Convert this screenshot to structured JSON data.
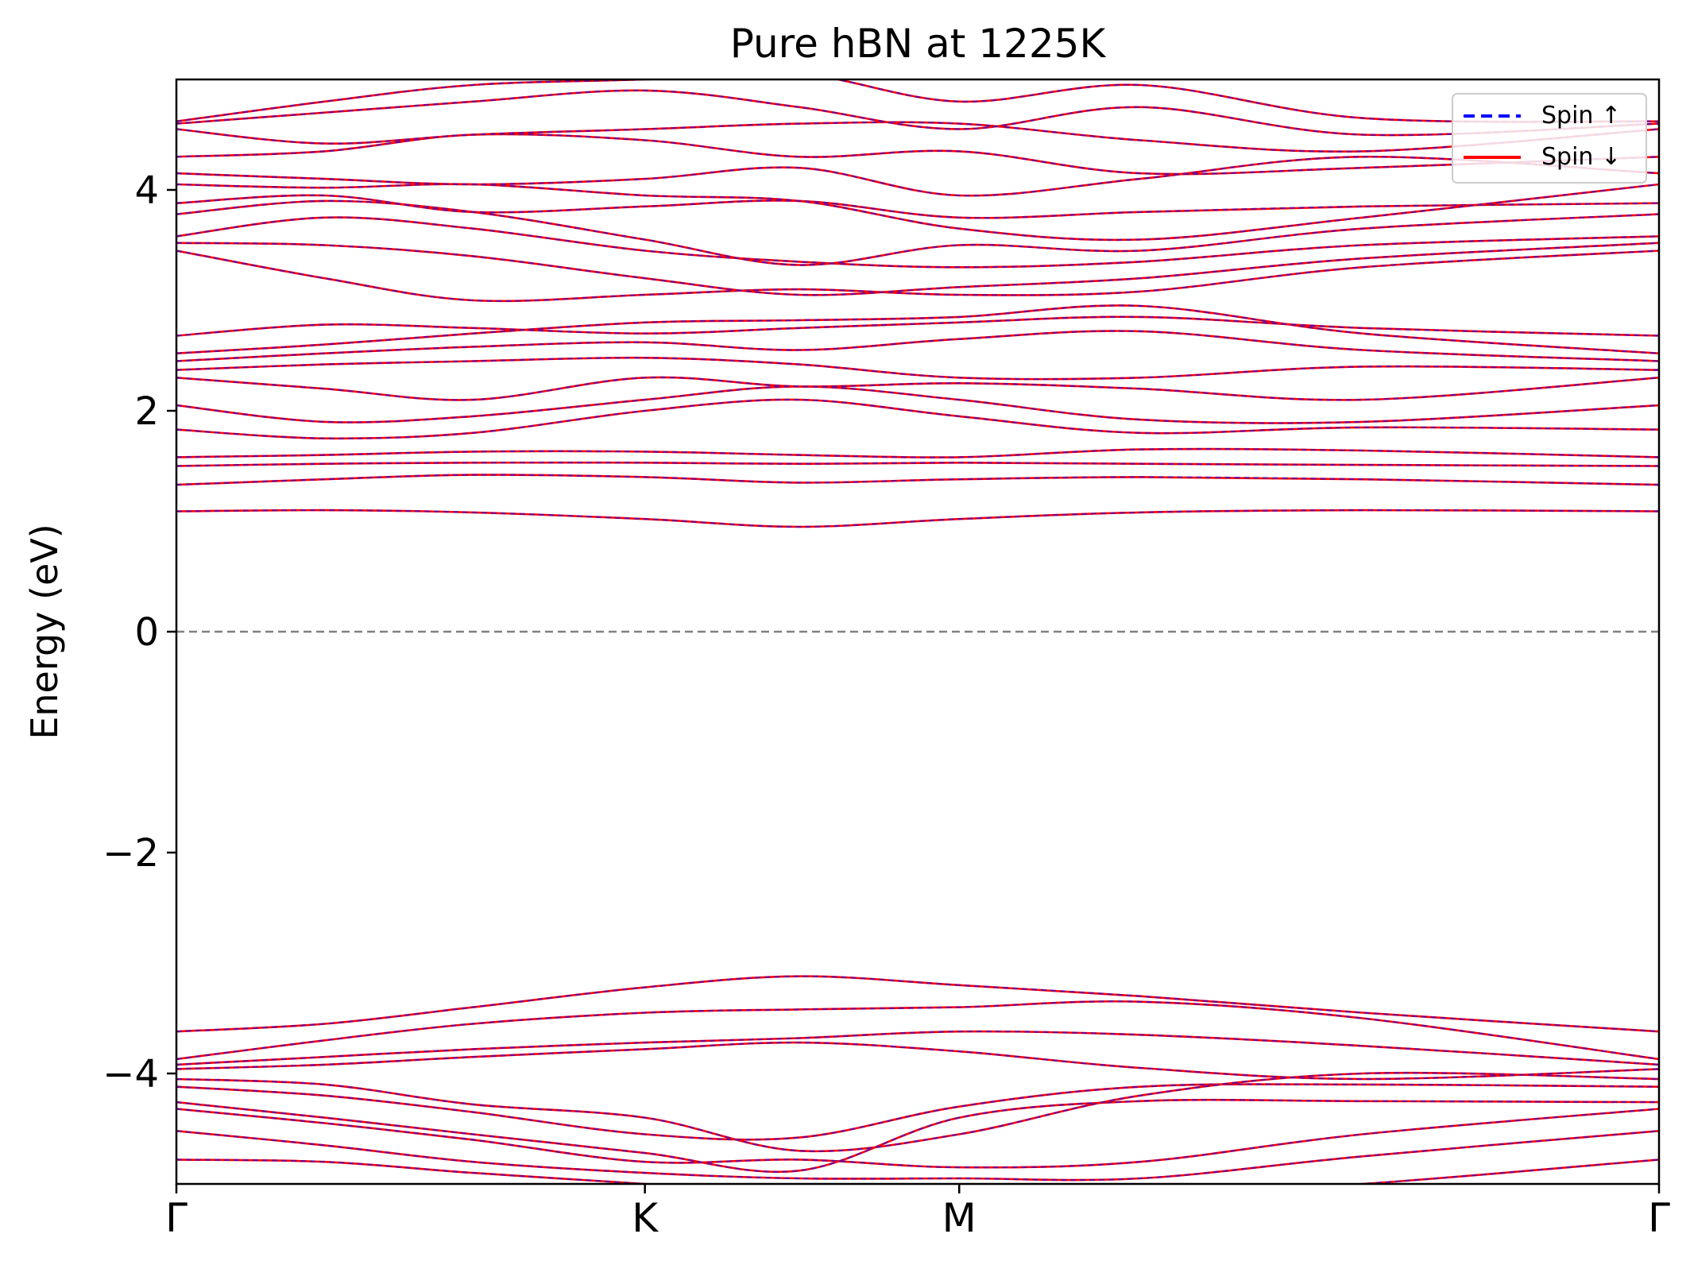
{
  "chart_data": {
    "type": "line",
    "title": "Pure hBN at 1225K",
    "xlabel": "",
    "ylabel": "Energy (eV)",
    "xlim": [
      0,
      1
    ],
    "ylim": [
      -5,
      5
    ],
    "x_ticks": [
      {
        "pos": 0.0,
        "label": "Γ"
      },
      {
        "pos": 0.316,
        "label": "K"
      },
      {
        "pos": 0.528,
        "label": "M"
      },
      {
        "pos": 1.0,
        "label": "Γ"
      }
    ],
    "y_ticks": [
      {
        "value": -4,
        "label": "−4"
      },
      {
        "value": -2,
        "label": "−2"
      },
      {
        "value": 0,
        "label": "0"
      },
      {
        "value": 2,
        "label": "2"
      },
      {
        "value": 4,
        "label": "4"
      }
    ],
    "fermi_level": 0,
    "grid": false,
    "legend_placement": "top-right",
    "colors": {
      "spin_up": "#0000ff",
      "spin_down": "#ff0000",
      "fermi": "#808080"
    },
    "series": [
      {
        "name": "Spin ↑",
        "style": "dashed"
      },
      {
        "name": "Spin ↓",
        "style": "solid"
      }
    ],
    "x": [
      0.0,
      0.1,
      0.2,
      0.316,
      0.42,
      0.528,
      0.65,
      0.8,
      1.0
    ],
    "bands": [
      [
        -4.78,
        -4.8,
        -4.9,
        -5.0,
        -5.1,
        -5.1,
        -5.1,
        -5.0,
        -4.78
      ],
      [
        -4.52,
        -4.65,
        -4.8,
        -4.9,
        -4.95,
        -4.95,
        -4.95,
        -4.75,
        -4.52
      ],
      [
        -4.32,
        -4.45,
        -4.6,
        -4.8,
        -4.78,
        -4.85,
        -4.8,
        -4.55,
        -4.32
      ],
      [
        -4.26,
        -4.4,
        -4.55,
        -4.72,
        -4.88,
        -4.4,
        -4.25,
        -4.25,
        -4.26
      ],
      [
        -4.12,
        -4.2,
        -4.35,
        -4.55,
        -4.58,
        -4.3,
        -4.12,
        -4.1,
        -4.12
      ],
      [
        -4.05,
        -4.1,
        -4.28,
        -4.4,
        -4.7,
        -4.55,
        -4.2,
        -4.0,
        -4.05
      ],
      [
        -3.96,
        -3.92,
        -3.85,
        -3.78,
        -3.72,
        -3.8,
        -3.95,
        -4.05,
        -3.96
      ],
      [
        -3.92,
        -3.85,
        -3.78,
        -3.72,
        -3.68,
        -3.62,
        -3.65,
        -3.75,
        -3.92
      ],
      [
        -3.87,
        -3.7,
        -3.55,
        -3.45,
        -3.42,
        -3.4,
        -3.35,
        -3.5,
        -3.87
      ],
      [
        -3.62,
        -3.55,
        -3.4,
        -3.22,
        -3.12,
        -3.2,
        -3.3,
        -3.45,
        -3.62
      ],
      [
        1.09,
        1.1,
        1.08,
        1.02,
        0.95,
        1.02,
        1.08,
        1.1,
        1.09
      ],
      [
        1.33,
        1.38,
        1.42,
        1.4,
        1.35,
        1.38,
        1.4,
        1.38,
        1.33
      ],
      [
        1.5,
        1.52,
        1.53,
        1.53,
        1.52,
        1.53,
        1.52,
        1.51,
        1.5
      ],
      [
        1.58,
        1.6,
        1.63,
        1.63,
        1.6,
        1.58,
        1.65,
        1.64,
        1.58
      ],
      [
        1.83,
        1.75,
        1.8,
        2.0,
        2.1,
        1.95,
        1.8,
        1.85,
        1.83
      ],
      [
        2.05,
        1.9,
        1.95,
        2.1,
        2.22,
        2.1,
        1.92,
        1.9,
        2.05
      ],
      [
        2.3,
        2.2,
        2.1,
        2.3,
        2.22,
        2.25,
        2.2,
        2.1,
        2.3
      ],
      [
        2.37,
        2.42,
        2.45,
        2.48,
        2.42,
        2.3,
        2.3,
        2.4,
        2.37
      ],
      [
        2.45,
        2.52,
        2.58,
        2.62,
        2.55,
        2.65,
        2.72,
        2.55,
        2.45
      ],
      [
        2.52,
        2.6,
        2.7,
        2.8,
        2.82,
        2.85,
        2.95,
        2.7,
        2.52
      ],
      [
        2.68,
        2.78,
        2.75,
        2.7,
        2.75,
        2.8,
        2.85,
        2.75,
        2.68
      ],
      [
        3.45,
        3.2,
        3.0,
        3.05,
        3.1,
        3.05,
        3.08,
        3.3,
        3.45
      ],
      [
        3.52,
        3.5,
        3.4,
        3.2,
        3.05,
        3.12,
        3.2,
        3.38,
        3.52
      ],
      [
        3.58,
        3.75,
        3.65,
        3.45,
        3.35,
        3.3,
        3.35,
        3.5,
        3.58
      ],
      [
        3.78,
        3.9,
        3.8,
        3.55,
        3.32,
        3.5,
        3.45,
        3.65,
        3.78
      ],
      [
        3.88,
        3.95,
        3.8,
        3.85,
        3.9,
        3.75,
        3.8,
        3.85,
        3.88
      ],
      [
        4.05,
        4.02,
        4.05,
        3.95,
        3.9,
        3.65,
        3.55,
        3.75,
        4.05
      ],
      [
        4.15,
        4.1,
        4.05,
        4.1,
        4.2,
        3.95,
        4.1,
        4.3,
        4.15
      ],
      [
        4.3,
        4.35,
        4.5,
        4.45,
        4.3,
        4.35,
        4.15,
        4.2,
        4.3
      ],
      [
        4.55,
        4.42,
        4.5,
        4.55,
        4.6,
        4.6,
        4.45,
        4.35,
        4.55
      ],
      [
        4.6,
        4.7,
        4.8,
        4.9,
        4.75,
        4.55,
        4.75,
        4.5,
        4.6
      ],
      [
        4.62,
        4.8,
        4.95,
        5.0,
        5.05,
        4.8,
        4.95,
        4.65,
        4.62
      ]
    ]
  }
}
